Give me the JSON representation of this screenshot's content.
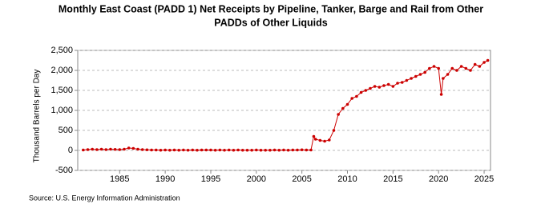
{
  "chart_data": {
    "type": "line",
    "title": "Monthly East Coast (PADD 1) Net Receipts by Pipeline, Tanker, Barge and Rail from Other",
    "title_line2": "PADDs of Other Liquids",
    "ylabel": "Thousand Barrels per Day",
    "source": "Source: U.S. Energy Information Administration",
    "xlim": [
      1980.4,
      2025.7
    ],
    "xticks": [
      1985,
      1990,
      1995,
      2000,
      2005,
      2010,
      2015,
      2020,
      2025
    ],
    "ylim": [
      -500,
      2500
    ],
    "yticks": [
      -500,
      0,
      500,
      {
        "value": 1000,
        "label": "1,000"
      },
      {
        "value": 1500,
        "label": "1,500"
      },
      {
        "value": 2000,
        "label": "2,000"
      },
      {
        "value": 2500,
        "label": "2,500"
      }
    ],
    "grid": true,
    "series": [
      {
        "name": "East Coast net receipts",
        "color": "#cc0000",
        "x": [
          1981,
          1981.5,
          1982,
          1982.5,
          1983,
          1983.5,
          1984,
          1984.5,
          1985,
          1985.5,
          1986,
          1986.5,
          1987,
          1987.5,
          1988,
          1988.5,
          1989,
          1989.5,
          1990,
          1990.5,
          1991,
          1991.5,
          1992,
          1992.5,
          1993,
          1993.5,
          1994,
          1994.5,
          1995,
          1995.5,
          1996,
          1996.5,
          1997,
          1997.5,
          1998,
          1998.5,
          1999,
          1999.5,
          2000,
          2000.5,
          2001,
          2001.5,
          2002,
          2002.5,
          2003,
          2003.5,
          2004,
          2004.5,
          2005,
          2005.5,
          2006,
          2006.3,
          2006.5,
          2007,
          2007.5,
          2008,
          2008.5,
          2009,
          2009.5,
          2010,
          2010.5,
          2011,
          2011.5,
          2012,
          2012.5,
          2013,
          2013.5,
          2014,
          2014.5,
          2015,
          2015.5,
          2016,
          2016.5,
          2017,
          2017.5,
          2018,
          2018.5,
          2019,
          2019.5,
          2020,
          2020.3,
          2020.5,
          2021,
          2021.5,
          2022,
          2022.5,
          2023,
          2023.5,
          2024,
          2024.5,
          2025,
          2025.4
        ],
        "values": [
          10,
          20,
          30,
          20,
          30,
          20,
          30,
          25,
          20,
          30,
          60,
          50,
          30,
          20,
          15,
          10,
          10,
          5,
          10,
          5,
          10,
          5,
          10,
          5,
          10,
          5,
          10,
          10,
          10,
          5,
          10,
          5,
          10,
          5,
          10,
          5,
          5,
          5,
          10,
          5,
          5,
          5,
          10,
          5,
          10,
          5,
          10,
          10,
          15,
          10,
          10,
          350,
          280,
          250,
          230,
          260,
          500,
          900,
          1050,
          1150,
          1300,
          1350,
          1450,
          1500,
          1550,
          1600,
          1580,
          1620,
          1650,
          1600,
          1680,
          1700,
          1750,
          1800,
          1850,
          1900,
          1950,
          2050,
          2100,
          2050,
          1400,
          1800,
          1900,
          2050,
          2000,
          2100,
          2050,
          2000,
          2150,
          2100,
          2200,
          2250
        ]
      }
    ]
  }
}
